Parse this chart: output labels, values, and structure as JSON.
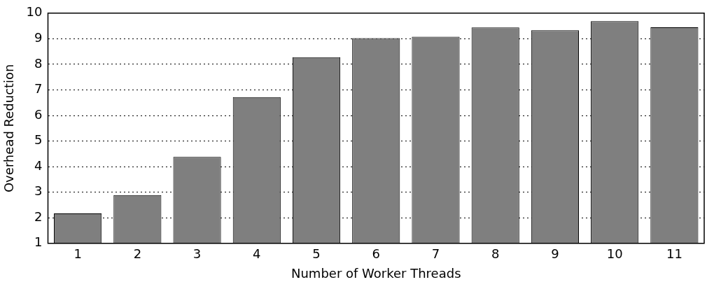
{
  "chart_data": {
    "type": "bar",
    "xlabel": "Number of Worker Threads",
    "ylabel": "Overhead Reduction",
    "categories": [
      "1",
      "2",
      "3",
      "4",
      "5",
      "6",
      "7",
      "8",
      "9",
      "10",
      "11"
    ],
    "values": [
      2.17,
      2.89,
      4.38,
      6.72,
      8.28,
      9.02,
      9.08,
      9.44,
      9.33,
      9.69,
      9.45
    ],
    "color": "#7f7f7f",
    "ylim": [
      1,
      10
    ],
    "yticks": [
      1,
      2,
      3,
      4,
      5,
      6,
      7,
      8,
      9,
      10
    ],
    "grid": "y"
  }
}
